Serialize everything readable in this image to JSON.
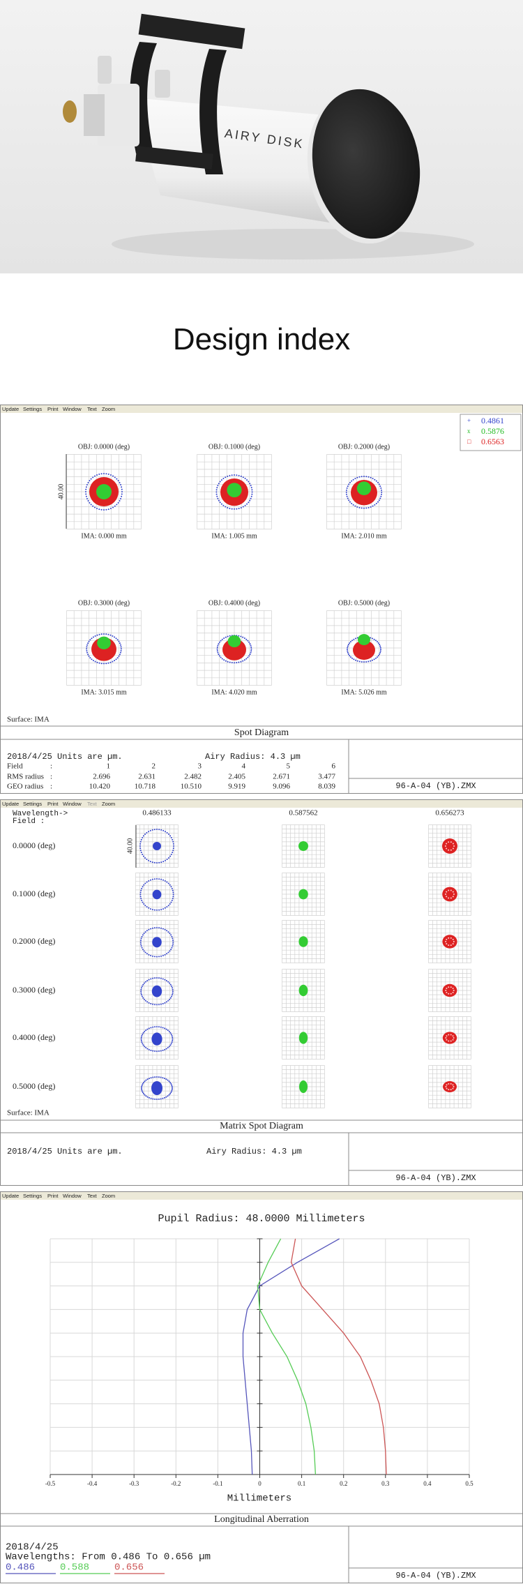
{
  "hero": {
    "brand": "AIRY DISK"
  },
  "heading": "Design index",
  "spot_diagram": {
    "menu": [
      "Update",
      "Settings",
      "Print",
      "Window",
      "Text",
      "Zoom"
    ],
    "legend": [
      "0.4861",
      "0.5876",
      "0.6563"
    ],
    "scale": "40.00",
    "fields": [
      {
        "obj": "OBJ: 0.0000 (deg)",
        "ima": "IMA: 0.000 mm"
      },
      {
        "obj": "OBJ: 0.1000 (deg)",
        "ima": "IMA: 1.005 mm"
      },
      {
        "obj": "OBJ: 0.2000 (deg)",
        "ima": "IMA: 2.010 mm"
      },
      {
        "obj": "OBJ: 0.3000 (deg)",
        "ima": "IMA: 3.015 mm"
      },
      {
        "obj": "OBJ: 0.4000 (deg)",
        "ima": "IMA: 4.020 mm"
      },
      {
        "obj": "OBJ: 0.5000 (deg)",
        "ima": "IMA: 5.026 mm"
      }
    ],
    "surface": "Surface: IMA",
    "title": "Spot Diagram",
    "date_units": "2018/4/25  Units are µm.",
    "airy": "Airy Radius: 4.3 µm",
    "table": {
      "rows": [
        [
          "Field",
          ":",
          "1",
          "2",
          "3",
          "4",
          "5",
          "6"
        ],
        [
          "RMS radius",
          ":",
          "2.696",
          "2.631",
          "2.482",
          "2.405",
          "2.671",
          "3.477"
        ],
        [
          "GEO radius",
          ":",
          "10.420",
          "10.718",
          "10.510",
          "9.919",
          "9.096",
          "8.039"
        ]
      ]
    },
    "file": "96-A-04 (YB).ZMX"
  },
  "matrix": {
    "menu": [
      "Update",
      "Settings",
      "Print",
      "Window",
      "Text",
      "Zoom"
    ],
    "wavelength_label": "Wavelength->",
    "field_label": "Field    :",
    "wavelengths": [
      "0.486133",
      "0.587562",
      "0.656273"
    ],
    "fields": [
      "0.0000 (deg)",
      "0.1000 (deg)",
      "0.2000 (deg)",
      "0.3000 (deg)",
      "0.4000 (deg)",
      "0.5000 (deg)"
    ],
    "scale": "40.00",
    "surface": "Surface: IMA",
    "title": "Matrix Spot Diagram",
    "date_units": "2018/4/25  Units are µm.",
    "airy": "Airy Radius: 4.3 µm",
    "file": "96-A-04 (YB).ZMX"
  },
  "chart_data": {
    "type": "line",
    "menu": [
      "Update",
      "Settings",
      "Print",
      "Window",
      "Text",
      "Zoom"
    ],
    "title": "Pupil Radius: 48.0000 Millimeters",
    "x_label": "Millimeters",
    "xlim": [
      -0.5,
      0.5
    ],
    "xticks": [
      -0.5,
      -0.4,
      -0.3,
      -0.2,
      -0.1,
      0,
      0.1,
      0.2,
      0.3,
      0.4,
      0.5
    ],
    "ylim": [
      0,
      1
    ],
    "pupil": [
      0,
      0.1,
      0.2,
      0.3,
      0.4,
      0.5,
      0.6,
      0.7,
      0.8,
      0.9,
      1
    ],
    "grid": true,
    "series": [
      {
        "name": "0.486",
        "color": "#5555bb",
        "values": [
          -0.018,
          -0.02,
          -0.025,
          -0.03,
          -0.035,
          -0.04,
          -0.04,
          -0.03,
          0,
          0.09,
          0.19
        ]
      },
      {
        "name": "0.588",
        "color": "#55cc55",
        "values": [
          0.133,
          0.13,
          0.122,
          0.11,
          0.09,
          0.065,
          0.03,
          0,
          -0.005,
          0.02,
          0.05
        ]
      },
      {
        "name": "0.656",
        "color": "#cc5555",
        "values": [
          0.302,
          0.3,
          0.295,
          0.285,
          0.265,
          0.24,
          0.2,
          0.15,
          0.1,
          0.075,
          0.085
        ]
      }
    ],
    "chart_title": "Longitudinal Aberration",
    "date": "2018/4/25",
    "wavelengths": "Wavelengths: From 0.486 To 0.656 µm",
    "file": "96-A-04 (YB).ZMX"
  }
}
